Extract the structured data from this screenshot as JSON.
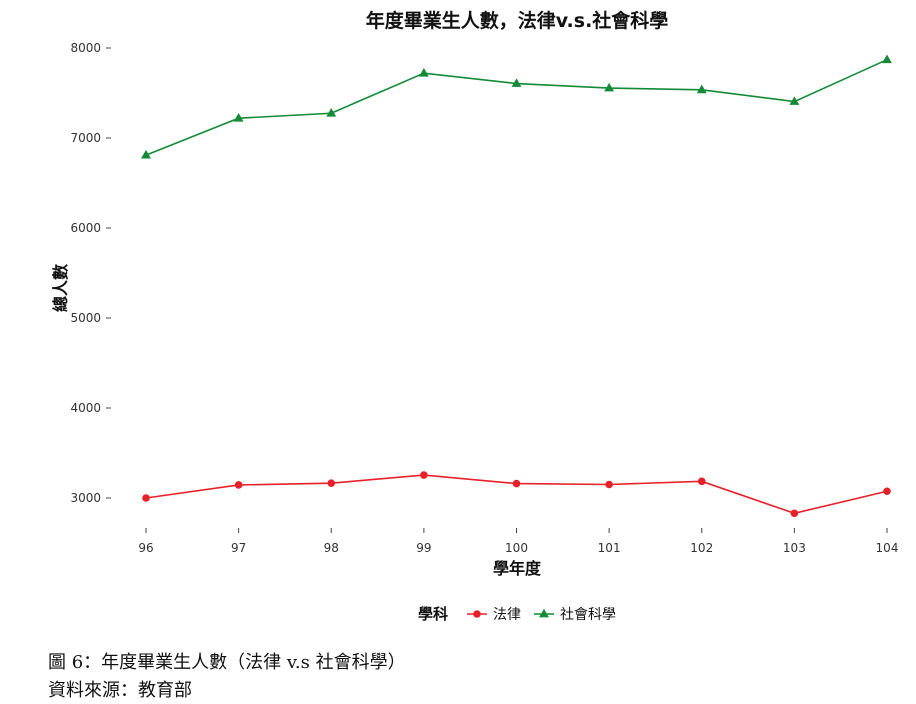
{
  "chart_data": {
    "type": "line",
    "title": "年度畢業生人數，法律v.s.社會科學",
    "xlabel": "學年度",
    "ylabel": "總人數",
    "categories": [
      "96",
      "97",
      "98",
      "99",
      "100",
      "101",
      "102",
      "103",
      "104"
    ],
    "y_ticks": [
      3000,
      4000,
      5000,
      6000,
      7000,
      8000
    ],
    "ylim": [
      2600,
      8200
    ],
    "grid": false,
    "legend": {
      "title": "學科",
      "placement": "bottom"
    },
    "series": [
      {
        "name": "法律",
        "marker": "circle",
        "color": "#e8202a",
        "values": [
          3000,
          3145,
          3165,
          3255,
          3160,
          3150,
          3185,
          2830,
          3075
        ]
      },
      {
        "name": "社會科學",
        "marker": "triangle",
        "color": "#138a36",
        "values": [
          6810,
          7220,
          7275,
          7720,
          7605,
          7555,
          7535,
          7405,
          7870
        ]
      }
    ]
  },
  "caption": {
    "figure": "圖 6：年度畢業生人數（法律 v.s 社會科學）",
    "source": "資料來源：教育部"
  }
}
